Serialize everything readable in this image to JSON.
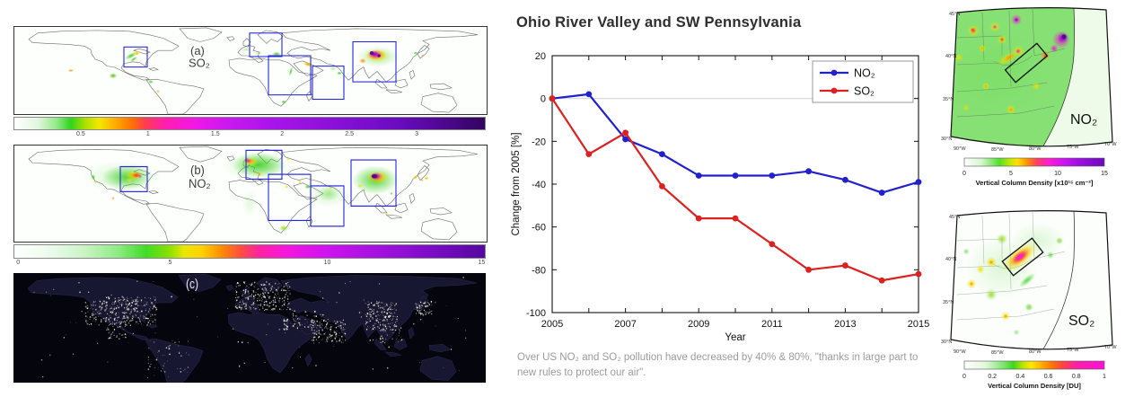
{
  "left_panel": {
    "map_a": {
      "label": "(a)",
      "species": "SO₂"
    },
    "colorbar_a": {
      "ticks": [
        "0.5",
        "1",
        "1.5",
        "2",
        "2.5",
        "3"
      ]
    },
    "map_b": {
      "label": "(b)",
      "species": "NO₂"
    },
    "colorbar_b": {
      "ticks": [
        "0",
        "5",
        "10",
        "15"
      ]
    },
    "map_c": {
      "label": "(c)"
    }
  },
  "center_panel": {
    "title": "Ohio River Valley and SW Pennsylvania",
    "caption": "Over US NO₂ and SO₂ pollution have decreased by 40% & 80%, \"thanks in large part to new rules to protect our air\"."
  },
  "chart_data": {
    "type": "line",
    "title": "Ohio River Valley and SW Pennsylvania",
    "xlabel": "Year",
    "ylabel": "Change from 2005 [%]",
    "x": [
      2005,
      2006,
      2007,
      2008,
      2009,
      2010,
      2011,
      2012,
      2013,
      2014,
      2015
    ],
    "series": [
      {
        "name": "NO₂",
        "color": "#2020cc",
        "values": [
          0,
          2,
          -19,
          -26,
          -36,
          -36,
          -36,
          -34,
          -38,
          -44,
          -39
        ]
      },
      {
        "name": "SO₂",
        "color": "#dd2020",
        "values": [
          0,
          -26,
          -16,
          -41,
          -56,
          -56,
          -68,
          -80,
          -78,
          -85,
          -82
        ]
      }
    ],
    "xlim": [
      2005,
      2015
    ],
    "ylim": [
      -100,
      20
    ],
    "yticks": [
      20,
      0,
      -20,
      -40,
      -60,
      -80,
      -100
    ],
    "xtick_labels": [
      "2005",
      "2007",
      "2009",
      "2011",
      "2013",
      "2015"
    ],
    "legend_position": "top-right",
    "grid": "zero-line-only"
  },
  "right_panel": {
    "map_no2": {
      "species": "NO₂",
      "lat_labels": [
        "45°N",
        "40°N",
        "35°N",
        "30°N"
      ],
      "lon_labels": [
        "90°W",
        "85°W",
        "80°W",
        "75°W",
        "70°W"
      ],
      "colorbar": {
        "ticks": [
          "0",
          "5",
          "10",
          "15"
        ],
        "label": "Vertical Column Density [x10¹⁵ cm⁻²]"
      }
    },
    "map_so2": {
      "species": "SO₂",
      "lat_labels": [
        "45°N",
        "40°N",
        "35°N",
        "30°N"
      ],
      "lon_labels": [
        "90°W",
        "85°W",
        "80°W",
        "75°W",
        "70°W"
      ],
      "colorbar": {
        "ticks": [
          "0",
          "0.2",
          "0.4",
          "0.6",
          "0.8",
          "1"
        ],
        "label": "Vertical Column Density [DU]"
      }
    }
  }
}
